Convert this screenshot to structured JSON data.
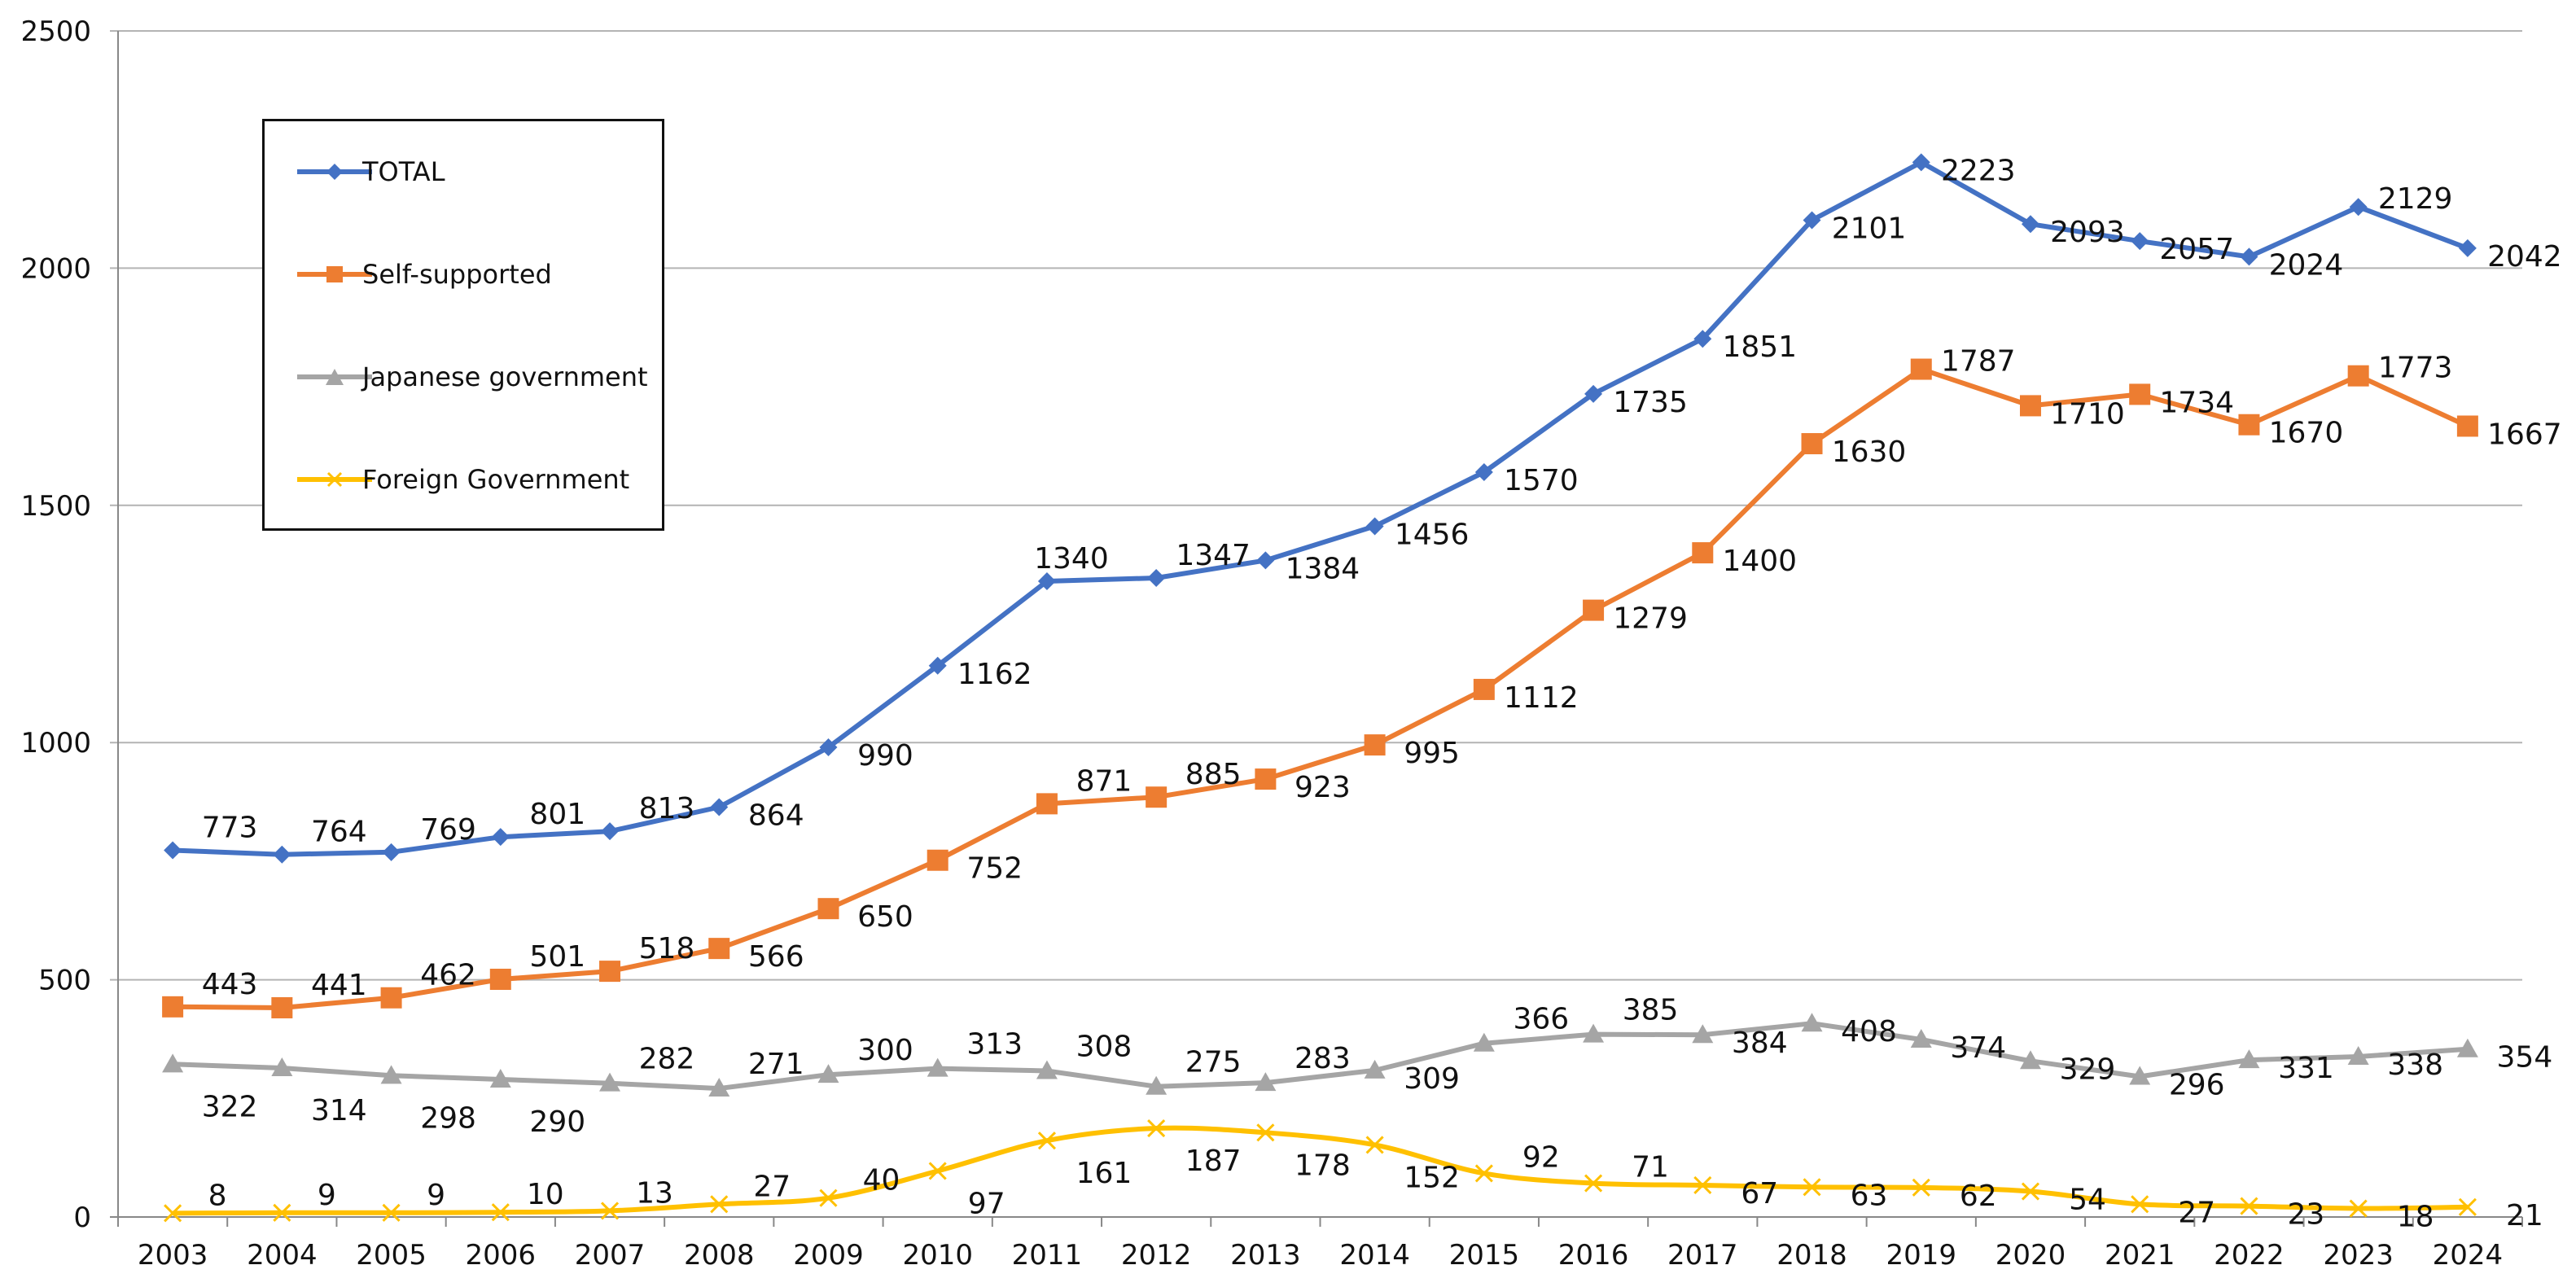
{
  "chart_data": {
    "type": "line",
    "title": "",
    "xlabel": "",
    "ylabel": "",
    "categories": [
      "2003",
      "2004",
      "2005",
      "2006",
      "2007",
      "2008",
      "2009",
      "2010",
      "2011",
      "2012",
      "2013",
      "2014",
      "2015",
      "2016",
      "2017",
      "2018",
      "2019",
      "2020",
      "2021",
      "2022",
      "2023",
      "2024"
    ],
    "ylim": [
      0,
      2500
    ],
    "yticks": [
      "0",
      "500",
      "1000",
      "1500",
      "2000",
      "2500"
    ],
    "ytick_values": [
      0,
      500,
      1000,
      1500,
      2000,
      2500
    ],
    "grid": "horizontal",
    "legend_position": "top-left",
    "series": [
      {
        "name": "TOTAL",
        "color": "#4472C4",
        "marker": "diamond",
        "values": [
          773,
          764,
          769,
          801,
          813,
          864,
          990,
          1162,
          1340,
          1347,
          1384,
          1456,
          1570,
          1735,
          1851,
          2101,
          2223,
          2093,
          2057,
          2024,
          2129,
          2042
        ],
        "labels": [
          "773",
          "764",
          "769",
          "801",
          "813",
          "864",
          "990",
          "1162",
          "1340",
          "1347",
          "1384",
          "1456",
          "1570",
          "1735",
          "1851",
          "2101",
          "2223",
          "2093",
          "2057",
          "2024",
          "2129",
          "2042"
        ]
      },
      {
        "name": "Self-supported",
        "color": "#ED7D31",
        "marker": "square",
        "values": [
          443,
          441,
          462,
          501,
          518,
          566,
          650,
          752,
          871,
          885,
          923,
          995,
          1112,
          1279,
          1400,
          1630,
          1787,
          1710,
          1734,
          1670,
          1773,
          1667
        ],
        "labels": [
          "443",
          "441",
          "462",
          "501",
          "518",
          "566",
          "650",
          "752",
          "871",
          "885",
          "923",
          "995",
          "1112",
          "1279",
          "1400",
          "1630",
          "1787",
          "1710",
          "1734",
          "1670",
          "1773",
          "1667"
        ]
      },
      {
        "name": "Japanese government",
        "color": "#A5A5A5",
        "marker": "triangle",
        "values": [
          322,
          314,
          298,
          290,
          282,
          271,
          300,
          313,
          308,
          275,
          283,
          309,
          366,
          385,
          384,
          408,
          374,
          329,
          296,
          331,
          338,
          354
        ],
        "labels": [
          "322",
          "314",
          "298",
          "290",
          "282",
          "271",
          "300",
          "313",
          "308",
          "275",
          "283",
          "309",
          "366",
          "385",
          "384",
          "408",
          "374",
          "329",
          "296",
          "331",
          "338",
          "354"
        ]
      },
      {
        "name": "Foreign Government",
        "color": "#FFC000",
        "marker": "x",
        "values": [
          8,
          9,
          9,
          10,
          13,
          27,
          40,
          97,
          161,
          187,
          178,
          152,
          92,
          71,
          67,
          63,
          62,
          54,
          27,
          23,
          18,
          21
        ],
        "labels": [
          "8",
          "9",
          "9",
          "10",
          "13",
          "27",
          "40",
          "97",
          "161",
          "187",
          "178",
          "152",
          "92",
          "71",
          "67",
          "63",
          "62",
          "54",
          "27",
          "23",
          "18",
          "21"
        ]
      }
    ]
  }
}
